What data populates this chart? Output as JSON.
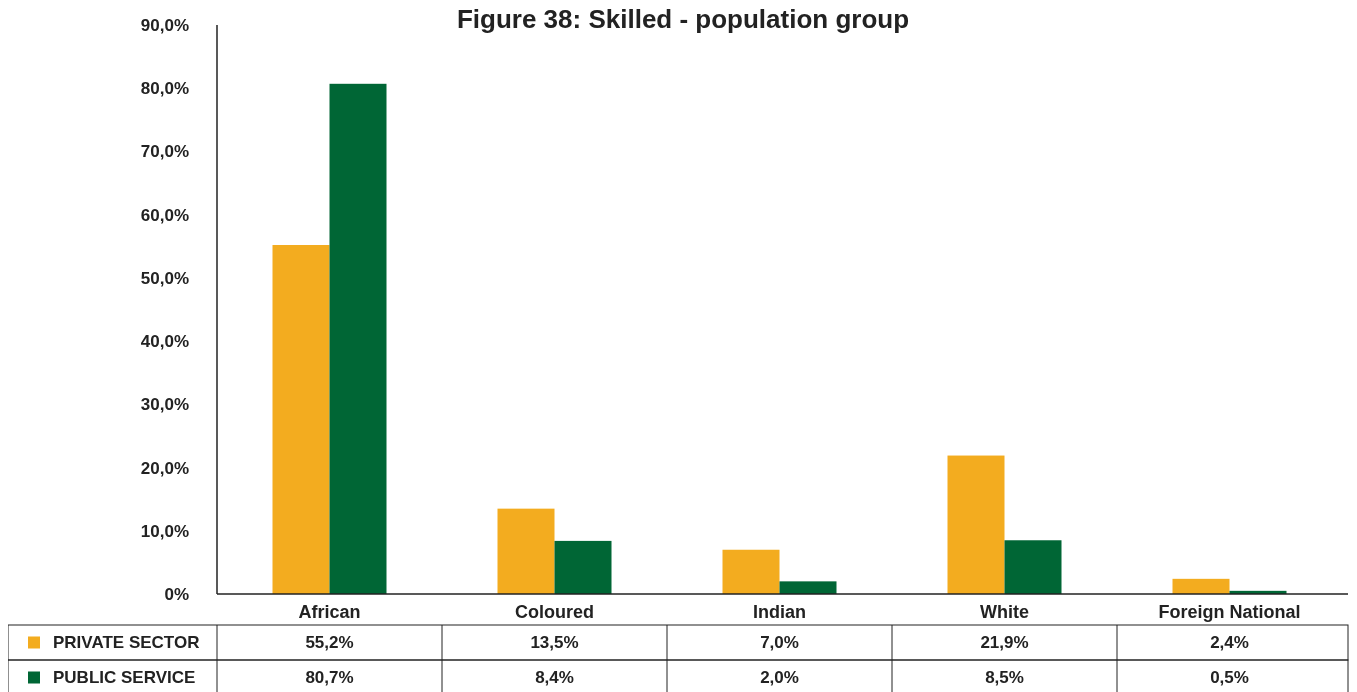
{
  "chart_data": {
    "type": "bar",
    "title": "Figure 38: Skilled - population group",
    "categories": [
      "African",
      "Coloured",
      "Indian",
      "White",
      "Foreign National"
    ],
    "series": [
      {
        "name": "PRIVATE SECTOR",
        "color": "#f3ac1f",
        "values": [
          55.2,
          13.5,
          7.0,
          21.9,
          2.4
        ],
        "value_labels": [
          "55,2%",
          "13,5%",
          "7,0%",
          "21,9%",
          "2,4%"
        ]
      },
      {
        "name": "PUBLIC SERVICE",
        "color": "#006635",
        "values": [
          80.7,
          8.4,
          2.0,
          8.5,
          0.5
        ],
        "value_labels": [
          "80,7%",
          "8,4%",
          "2,0%",
          "8,5%",
          "0,5%"
        ]
      }
    ],
    "ylim": [
      0,
      90
    ],
    "yticks": [
      {
        "value": 0,
        "label": "0%"
      },
      {
        "value": 10,
        "label": "10,0%"
      },
      {
        "value": 20,
        "label": "20,0%"
      },
      {
        "value": 30,
        "label": "30,0%"
      },
      {
        "value": 40,
        "label": "40,0%"
      },
      {
        "value": 50,
        "label": "50,0%"
      },
      {
        "value": 60,
        "label": "60,0%"
      },
      {
        "value": 70,
        "label": "70,0%"
      },
      {
        "value": 80,
        "label": "80,0%"
      },
      {
        "value": 90,
        "label": "90,0%"
      }
    ],
    "legend": "bottom"
  }
}
